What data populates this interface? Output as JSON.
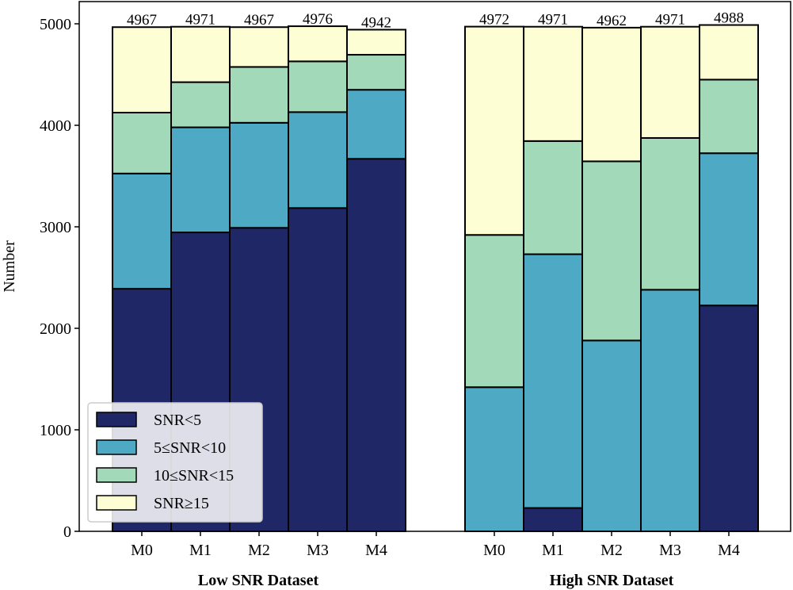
{
  "chart_data": {
    "type": "bar",
    "stacked": true,
    "ylabel": "Number",
    "ylim": [
      0,
      5000
    ],
    "yticks": [
      0,
      1000,
      2000,
      3000,
      4000,
      5000
    ],
    "grid": false,
    "legend_position": "lower-left",
    "stack_order": [
      "SNR<5",
      "5≤SNR<10",
      "10≤SNR<15",
      "SNR≥15"
    ],
    "series_colors": {
      "SNR<5": "#1f2767",
      "5≤SNR<10": "#4ea9c5",
      "10≤SNR<15": "#a2dab9",
      "SNR≥15": "#fdfed3"
    },
    "groups": [
      {
        "name": "Low SNR Dataset",
        "categories": [
          "M0",
          "M1",
          "M2",
          "M3",
          "M4"
        ],
        "series": [
          {
            "name": "SNR<5",
            "values": [
              2390,
              2945,
              2990,
              3185,
              3670
            ]
          },
          {
            "name": "5≤SNR<10",
            "values": [
              1135,
              1035,
              1035,
              945,
              680
            ]
          },
          {
            "name": "10≤SNR<15",
            "values": [
              600,
              445,
              550,
              500,
              345
            ]
          },
          {
            "name": "SNR≥15",
            "values": [
              842,
              546,
              392,
              346,
              247
            ]
          }
        ],
        "totals": [
          4967,
          4971,
          4967,
          4976,
          4942
        ]
      },
      {
        "name": "High SNR Dataset",
        "categories": [
          "M0",
          "M1",
          "M2",
          "M3",
          "M4"
        ],
        "series": [
          {
            "name": "SNR<5",
            "values": [
              0,
              230,
              0,
              0,
              2225
            ]
          },
          {
            "name": "5≤SNR<10",
            "values": [
              1420,
              2500,
              1880,
              2380,
              1500
            ]
          },
          {
            "name": "10≤SNR<15",
            "values": [
              1500,
              1115,
              1765,
              1495,
              725
            ]
          },
          {
            "name": "SNR≥15",
            "values": [
              2052,
              1126,
              1317,
              1096,
              538
            ]
          }
        ],
        "totals": [
          4972,
          4971,
          4962,
          4971,
          4988
        ]
      }
    ]
  }
}
